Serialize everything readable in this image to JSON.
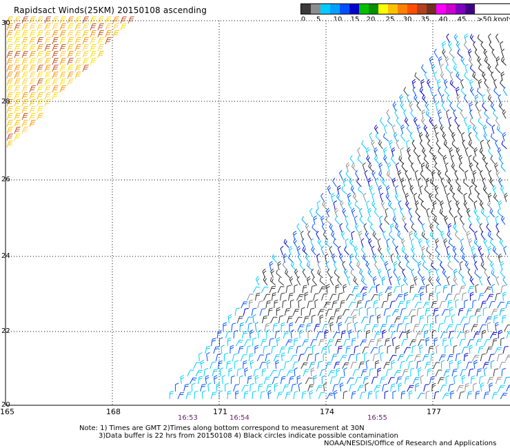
{
  "title": "Rapidsact Winds(25KM) 20150108 ascending",
  "legend": {
    "colors": [
      "#3a3a3a",
      "#8c8c8c",
      "#00ccff",
      "#00a0ff",
      "#0050ff",
      "#0000cc",
      "#00c000",
      "#009000",
      "#ffff00",
      "#ffc000",
      "#ff8000",
      "#ff5000",
      "#b04020",
      "#703020",
      "#ff00ff",
      "#cc00cc",
      "#8000c0",
      "#400080"
    ],
    "labels": [
      "0",
      "5",
      "10",
      "15",
      "20",
      "25",
      "30",
      "35",
      "40",
      "45",
      ">50 knots"
    ]
  },
  "map": {
    "lat_labels": [
      "30",
      "28",
      "26",
      "24",
      "22",
      "20"
    ],
    "lon_labels": [
      "165",
      "168",
      "171",
      "174",
      "177"
    ],
    "time_labels": [
      "16:53",
      "16:54",
      "16:55"
    ]
  },
  "notes": {
    "line1": "Note: 1) Times are GMT 2)Times along bottom correspond to measurement at 30N",
    "line2": "3)Data buffer is 22 hrs from 20150108 4) Black circles indicate possible contamination",
    "credit": "NOAA/NESDIS/Office of Research and Applications"
  }
}
